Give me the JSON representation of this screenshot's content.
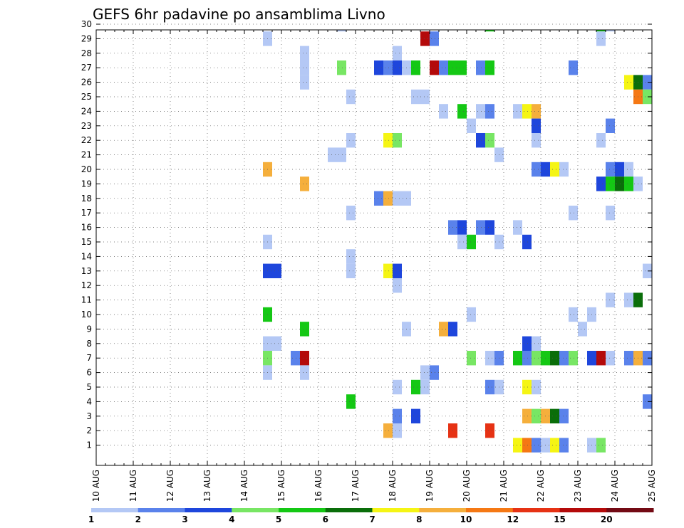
{
  "chart_data": {
    "type": "heatmap",
    "title": "GEFS 6hr padavine po ansamblima Livno",
    "x_tick_labels": [
      "10 AUG",
      "11 AUG",
      "12 AUG",
      "13 AUG",
      "14 AUG",
      "15 AUG",
      "16 AUG",
      "17 AUG",
      "18 AUG",
      "19 AUG",
      "20 AUG",
      "21 AUG",
      "22 AUG",
      "23 AUG",
      "24 AUG",
      "25 AUG"
    ],
    "y_tick_labels": [
      "1",
      "2",
      "3",
      "4",
      "5",
      "6",
      "7",
      "8",
      "9",
      "10",
      "11",
      "12",
      "13",
      "14",
      "15",
      "16",
      "17",
      "18",
      "19",
      "20",
      "21",
      "22",
      "23",
      "24",
      "25",
      "26",
      "27",
      "28",
      "29",
      "30"
    ],
    "xlim": [
      0,
      60
    ],
    "ylim": [
      0,
      30
    ],
    "x_unit": "6-hour steps from 10 AUG 00Z",
    "grid": true,
    "colorbar": {
      "levels": [
        "1",
        "2",
        "3",
        "4",
        "5",
        "6",
        "7",
        "8",
        "10",
        "12",
        "15",
        "20"
      ],
      "colors": [
        "#b4c8f5",
        "#5a82eb",
        "#1e46dc",
        "#78e664",
        "#14c814",
        "#0a6e0a",
        "#f5f514",
        "#f5af3c",
        "#f57814",
        "#e63214",
        "#b40a0a",
        "#730a14"
      ]
    },
    "cells": [
      [
        26,
        30,
        1
      ],
      [
        42,
        30,
        5
      ],
      [
        54,
        30,
        5
      ],
      [
        55,
        30,
        1
      ],
      [
        18,
        29,
        1
      ],
      [
        35,
        29,
        11
      ],
      [
        36,
        29,
        2
      ],
      [
        54,
        29,
        1
      ],
      [
        22,
        28,
        1
      ],
      [
        32,
        28,
        1
      ],
      [
        22,
        27,
        1
      ],
      [
        26,
        27,
        4
      ],
      [
        30,
        27,
        3
      ],
      [
        31,
        27,
        2
      ],
      [
        32,
        27,
        3
      ],
      [
        33,
        27,
        1
      ],
      [
        34,
        27,
        5
      ],
      [
        36,
        27,
        11
      ],
      [
        37,
        27,
        2
      ],
      [
        38,
        27,
        5
      ],
      [
        39,
        27,
        5
      ],
      [
        41,
        27,
        2
      ],
      [
        42,
        27,
        5
      ],
      [
        51,
        27,
        2
      ],
      [
        22,
        26,
        1
      ],
      [
        57,
        26,
        7
      ],
      [
        58,
        26,
        6
      ],
      [
        59,
        26,
        2
      ],
      [
        27,
        25,
        1
      ],
      [
        34,
        25,
        1
      ],
      [
        35,
        25,
        1
      ],
      [
        58,
        25,
        9
      ],
      [
        59,
        25,
        4
      ],
      [
        37,
        24,
        1
      ],
      [
        39,
        24,
        5
      ],
      [
        41,
        24,
        1
      ],
      [
        42,
        24,
        2
      ],
      [
        45,
        24,
        1
      ],
      [
        46,
        24,
        7
      ],
      [
        47,
        24,
        8
      ],
      [
        40,
        23,
        1
      ],
      [
        47,
        23,
        3
      ],
      [
        55,
        23,
        2
      ],
      [
        27,
        22,
        1
      ],
      [
        31,
        22,
        7
      ],
      [
        32,
        22,
        4
      ],
      [
        41,
        22,
        3
      ],
      [
        42,
        22,
        4
      ],
      [
        47,
        22,
        1
      ],
      [
        54,
        22,
        1
      ],
      [
        25,
        21,
        1
      ],
      [
        26,
        21,
        1
      ],
      [
        43,
        21,
        1
      ],
      [
        18,
        20,
        8
      ],
      [
        47,
        20,
        2
      ],
      [
        48,
        20,
        3
      ],
      [
        49,
        20,
        7
      ],
      [
        50,
        20,
        1
      ],
      [
        55,
        20,
        2
      ],
      [
        56,
        20,
        3
      ],
      [
        57,
        20,
        1
      ],
      [
        22,
        19,
        8
      ],
      [
        54,
        19,
        3
      ],
      [
        55,
        19,
        5
      ],
      [
        56,
        19,
        6
      ],
      [
        57,
        19,
        5
      ],
      [
        58,
        19,
        1
      ],
      [
        30,
        18,
        2
      ],
      [
        31,
        18,
        8
      ],
      [
        32,
        18,
        1
      ],
      [
        33,
        18,
        1
      ],
      [
        27,
        17,
        1
      ],
      [
        51,
        17,
        1
      ],
      [
        55,
        17,
        1
      ],
      [
        38,
        16,
        2
      ],
      [
        39,
        16,
        3
      ],
      [
        41,
        16,
        2
      ],
      [
        42,
        16,
        3
      ],
      [
        45,
        16,
        1
      ],
      [
        60,
        16,
        1
      ],
      [
        18,
        15,
        1
      ],
      [
        39,
        15,
        1
      ],
      [
        40,
        15,
        5
      ],
      [
        43,
        15,
        1
      ],
      [
        46,
        15,
        3
      ],
      [
        27,
        14,
        1
      ],
      [
        18,
        13,
        3
      ],
      [
        19,
        13,
        3
      ],
      [
        27,
        13,
        1
      ],
      [
        31,
        13,
        7
      ],
      [
        32,
        13,
        3
      ],
      [
        59,
        13,
        1
      ],
      [
        32,
        12,
        1
      ],
      [
        55,
        11,
        1
      ],
      [
        57,
        11,
        1
      ],
      [
        58,
        11,
        6
      ],
      [
        18,
        10,
        5
      ],
      [
        40,
        10,
        1
      ],
      [
        51,
        10,
        1
      ],
      [
        53,
        10,
        1
      ],
      [
        22,
        9,
        5
      ],
      [
        33,
        9,
        1
      ],
      [
        37,
        9,
        8
      ],
      [
        38,
        9,
        3
      ],
      [
        52,
        9,
        1
      ],
      [
        18,
        8,
        1
      ],
      [
        19,
        8,
        1
      ],
      [
        46,
        8,
        3
      ],
      [
        47,
        8,
        1
      ],
      [
        18,
        7,
        4
      ],
      [
        21,
        7,
        2
      ],
      [
        22,
        7,
        11
      ],
      [
        40,
        7,
        4
      ],
      [
        42,
        7,
        1
      ],
      [
        43,
        7,
        2
      ],
      [
        45,
        7,
        5
      ],
      [
        46,
        7,
        2
      ],
      [
        47,
        7,
        4
      ],
      [
        48,
        7,
        5
      ],
      [
        49,
        7,
        6
      ],
      [
        50,
        7,
        2
      ],
      [
        51,
        7,
        4
      ],
      [
        53,
        7,
        3
      ],
      [
        54,
        7,
        11
      ],
      [
        55,
        7,
        1
      ],
      [
        57,
        7,
        2
      ],
      [
        58,
        7,
        8
      ],
      [
        59,
        7,
        2
      ],
      [
        18,
        6,
        1
      ],
      [
        22,
        6,
        1
      ],
      [
        35,
        6,
        1
      ],
      [
        36,
        6,
        2
      ],
      [
        32,
        5,
        1
      ],
      [
        34,
        5,
        5
      ],
      [
        35,
        5,
        1
      ],
      [
        42,
        5,
        2
      ],
      [
        43,
        5,
        1
      ],
      [
        46,
        5,
        7
      ],
      [
        47,
        5,
        1
      ],
      [
        27,
        4,
        5
      ],
      [
        59,
        4,
        2
      ],
      [
        32,
        3,
        2
      ],
      [
        34,
        3,
        3
      ],
      [
        46,
        3,
        8
      ],
      [
        47,
        3,
        4
      ],
      [
        48,
        3,
        8
      ],
      [
        49,
        3,
        6
      ],
      [
        50,
        3,
        2
      ],
      [
        31,
        2,
        8
      ],
      [
        32,
        2,
        1
      ],
      [
        38,
        2,
        10
      ],
      [
        42,
        2,
        10
      ],
      [
        45,
        1,
        7
      ],
      [
        46,
        1,
        9
      ],
      [
        47,
        1,
        2
      ],
      [
        48,
        1,
        1
      ],
      [
        49,
        1,
        7
      ],
      [
        50,
        1,
        2
      ],
      [
        53,
        1,
        1
      ],
      [
        54,
        1,
        4
      ]
    ]
  }
}
